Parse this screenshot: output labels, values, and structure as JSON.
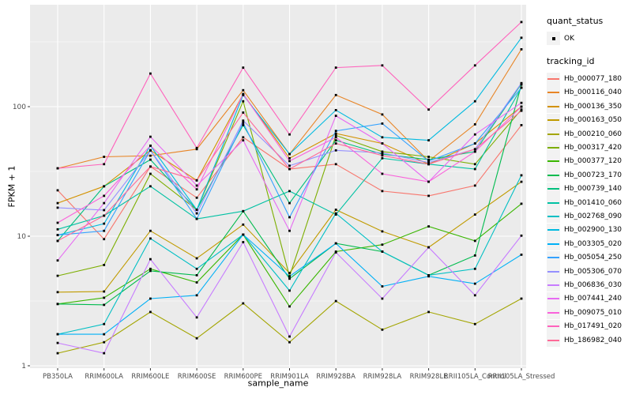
{
  "figure": {
    "background": "#FFFFFF",
    "panel_background": "#EBEBEB",
    "grid_color": "#FFFFFF",
    "tick_label_color": "#4D4D4D",
    "tick_mark_color": "#333333",
    "point_color": "#000000",
    "legend_key_fill": "#F2F2F2"
  },
  "axes": {
    "x_title": "sample_name",
    "y_title": "FPKM + 1",
    "y_scale": "log10",
    "y_tick_labels": [
      "1",
      "10",
      "100"
    ],
    "y_tick_values": [
      1,
      10,
      100
    ],
    "y_minor_values": [
      3.1623,
      31.623,
      316.23
    ]
  },
  "legend": {
    "quant_title": "quant_status",
    "quant_items": [
      {
        "label": "OK",
        "shape": "square",
        "color": "#000000"
      }
    ],
    "tracking_title": "tracking_id"
  },
  "chart_data": {
    "type": "line",
    "title": "",
    "xlabel": "sample_name",
    "ylabel": "FPKM + 1",
    "yscale": "log10",
    "ylim": [
      1,
      612
    ],
    "grid": true,
    "legend_position": "right",
    "point_shape": "filled-square-black",
    "categories": [
      "PB350LA",
      "RRIM600LA",
      "RRIM600LE",
      "RRIM600SE",
      "RRIM600PE",
      "RRIM901LA",
      "RRIM928BA",
      "RRIM928LA",
      "RRIM928LE",
      "RRII105LA_Control",
      "RRII105LA_Stressed"
    ],
    "series": [
      {
        "name": "Hb_000077_180",
        "color": "#F8766D",
        "values": [
          22.6,
          9.5,
          34.5,
          19.8,
          58,
          33,
          36,
          22.3,
          20.5,
          24.6,
          72
        ]
      },
      {
        "name": "Hb_000116_040",
        "color": "#E88526",
        "values": [
          33.4,
          41,
          41.8,
          47,
          134,
          43,
          123,
          87,
          38,
          73,
          277
        ]
      },
      {
        "name": "Hb_000136_350",
        "color": "#D39200",
        "values": [
          18,
          24.3,
          46,
          27,
          125,
          40,
          62,
          52,
          36,
          52,
          100
        ]
      },
      {
        "name": "Hb_000163_050",
        "color": "#C09B00",
        "values": [
          3.7,
          3.74,
          11,
          6.75,
          12.3,
          5.2,
          16,
          10.9,
          8.2,
          14.7,
          26.3
        ]
      },
      {
        "name": "Hb_000210_060",
        "color": "#A3A500",
        "values": [
          1.25,
          1.52,
          2.6,
          1.63,
          3.03,
          1.52,
          3.16,
          1.9,
          2.6,
          2.1,
          3.3
        ]
      },
      {
        "name": "Hb_000317_420",
        "color": "#7CAE00",
        "values": [
          4.95,
          6.0,
          30.3,
          16,
          110,
          4.9,
          60,
          45,
          41,
          36,
          95
        ]
      },
      {
        "name": "Hb_000377_120",
        "color": "#39B600",
        "values": [
          3.0,
          3.35,
          5.6,
          4.4,
          10.3,
          2.87,
          7.6,
          8.6,
          11.9,
          9.2,
          17.8
        ]
      },
      {
        "name": "Hb_000723_170",
        "color": "#00BB4E",
        "values": [
          3.0,
          2.95,
          5.4,
          5.0,
          15.6,
          4.7,
          8.8,
          7.6,
          5.0,
          7.1,
          148
        ]
      },
      {
        "name": "Hb_000739_140",
        "color": "#00BF7D",
        "values": [
          9.2,
          24.3,
          39,
          16,
          72,
          18,
          55,
          43,
          39,
          45,
          150
        ]
      },
      {
        "name": "Hb_001410_060",
        "color": "#00C1A3",
        "values": [
          11.3,
          14.4,
          24.3,
          13.6,
          15.6,
          22.3,
          14.7,
          40,
          36,
          33,
          140
        ]
      },
      {
        "name": "Hb_002768_090",
        "color": "#00BFC4",
        "values": [
          1.75,
          2.1,
          9.6,
          5.6,
          10.3,
          3.8,
          15,
          7.6,
          5.0,
          5.6,
          29.5
        ]
      },
      {
        "name": "Hb_002900_130",
        "color": "#00BAE0",
        "values": [
          10.2,
          12.5,
          50,
          16,
          123,
          43,
          94,
          58,
          55,
          110,
          340
        ]
      },
      {
        "name": "Hb_003305_020",
        "color": "#00B0F6",
        "values": [
          1.75,
          1.75,
          3.3,
          3.5,
          10.3,
          4.9,
          8.8,
          4.1,
          4.9,
          4.3,
          7.2
        ]
      },
      {
        "name": "Hb_005054_250",
        "color": "#35A2FF",
        "values": [
          10.2,
          11,
          46,
          13.6,
          75,
          14,
          65,
          74,
          38,
          52,
          140
        ]
      },
      {
        "name": "Hb_005306_070",
        "color": "#9590FF",
        "values": [
          16.6,
          15.9,
          46,
          15,
          78,
          35,
          46,
          44,
          37,
          47,
          152
        ]
      },
      {
        "name": "Hb_006836_030",
        "color": "#C77CFF",
        "values": [
          1.5,
          1.25,
          6.65,
          2.36,
          9,
          1.68,
          7.5,
          3.3,
          8.2,
          3.5,
          10.1
        ]
      },
      {
        "name": "Hb_007441_240",
        "color": "#E76BF3",
        "values": [
          6.5,
          18,
          58.6,
          24.6,
          55,
          11,
          85,
          52,
          26.3,
          61,
          107
        ]
      },
      {
        "name": "Hb_009075_010",
        "color": "#FA62DB",
        "values": [
          12.7,
          20.5,
          50,
          23,
          125,
          38,
          58,
          30.3,
          26.3,
          45,
          100
        ]
      },
      {
        "name": "Hb_017491_020",
        "color": "#FF62BC",
        "values": [
          33.4,
          36,
          180,
          48,
          200,
          61,
          200,
          208,
          95,
          208,
          450
        ]
      },
      {
        "name": "Hb_186982_040",
        "color": "#FF6A98",
        "values": [
          9.2,
          14.4,
          34.5,
          27,
          90,
          33,
          52,
          42,
          36,
          47,
          93
        ]
      }
    ]
  }
}
